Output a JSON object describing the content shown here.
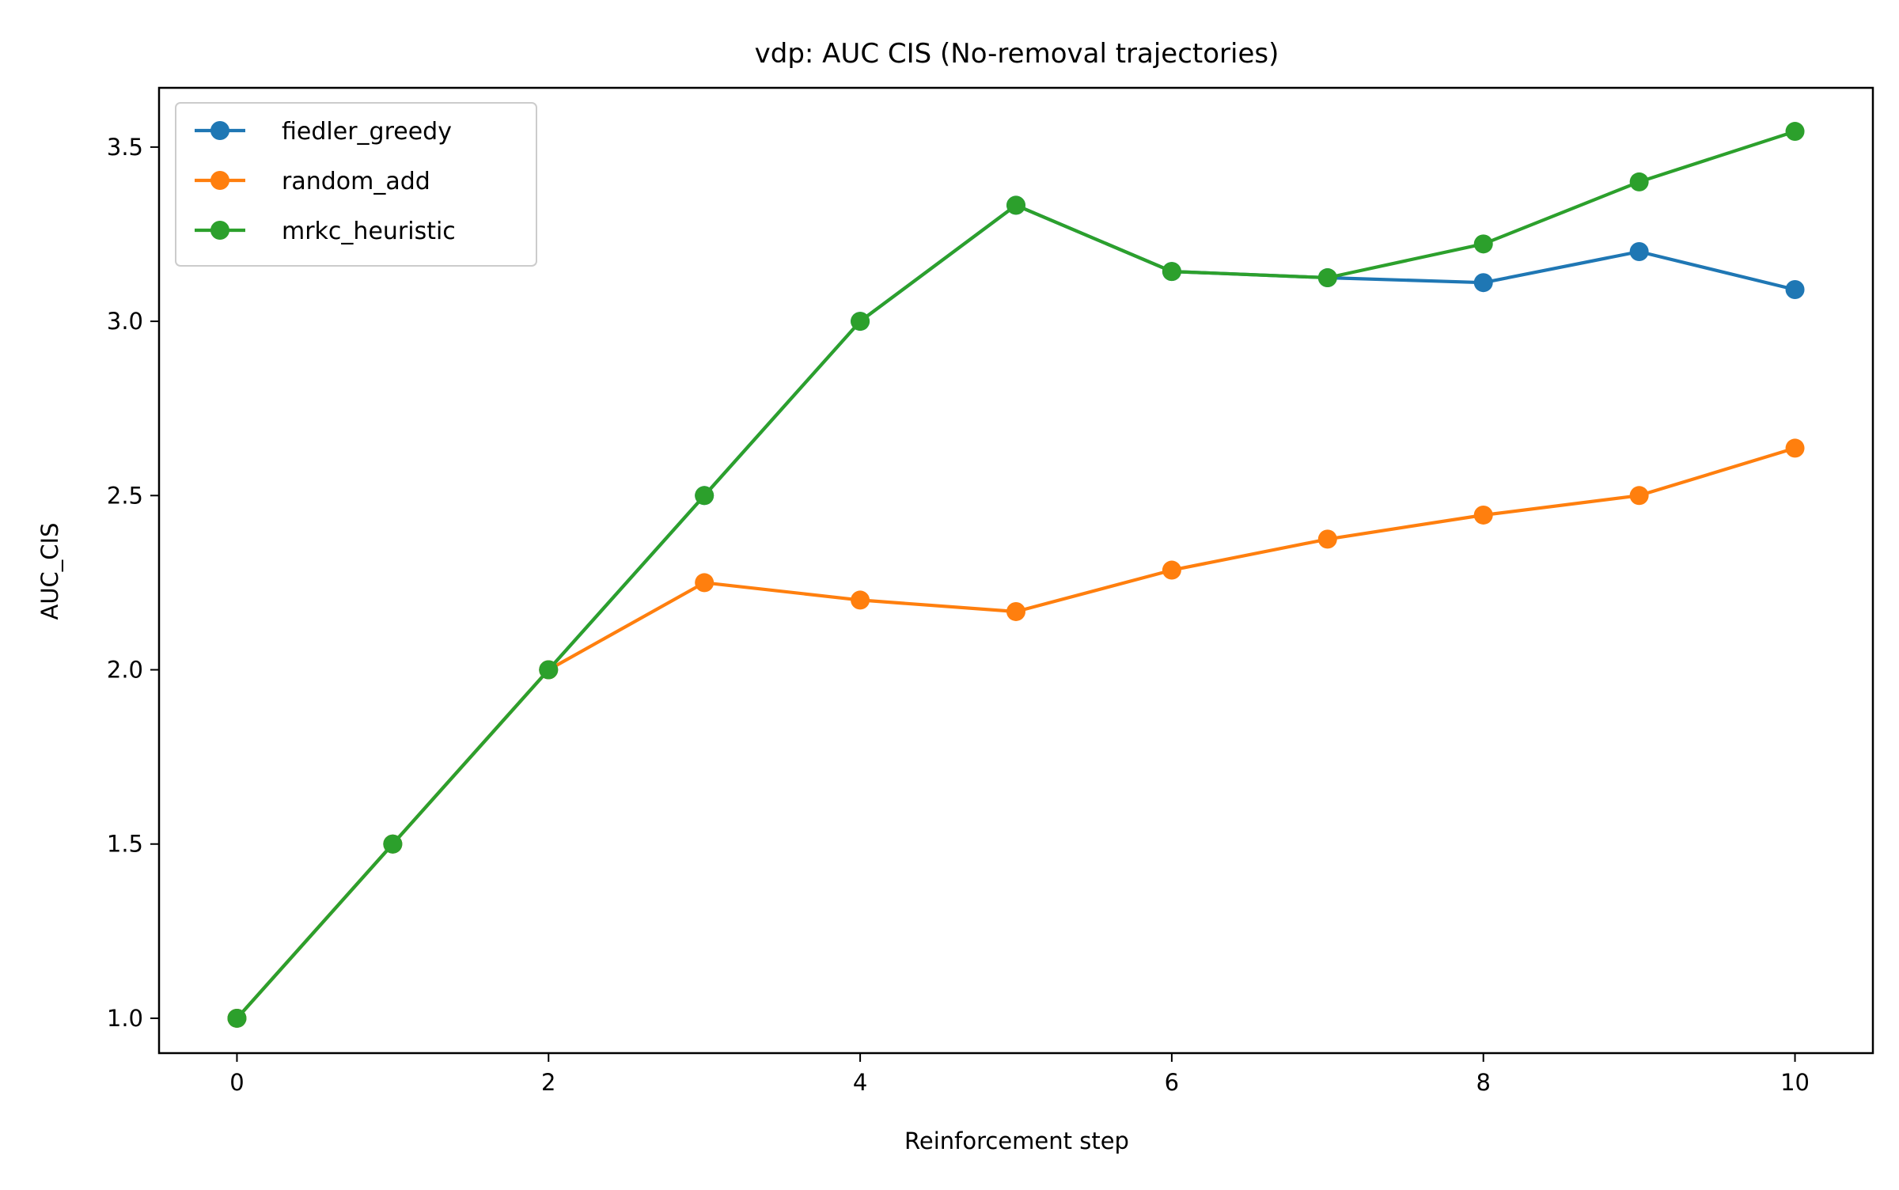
{
  "chart_data": {
    "type": "line",
    "title": "vdp: AUC CIS (No-removal trajectories)",
    "xlabel": "Reinforcement step",
    "ylabel": "AUC_CIS",
    "xlim": [
      -0.5,
      10.5
    ],
    "ylim": [
      0.9,
      3.67
    ],
    "xticks": [
      0,
      2,
      4,
      6,
      8,
      10
    ],
    "xtick_labels": [
      "0",
      "2",
      "4",
      "6",
      "8",
      "10"
    ],
    "yticks": [
      1.0,
      1.5,
      2.0,
      2.5,
      3.0,
      3.5
    ],
    "ytick_labels": [
      "1.0",
      "1.5",
      "2.0",
      "2.5",
      "3.0",
      "3.5"
    ],
    "grid": false,
    "legend_position": "top-left",
    "x": [
      0,
      1,
      2,
      3,
      4,
      5,
      6,
      7,
      8,
      9,
      10
    ],
    "series": [
      {
        "name": "fiedler_greedy",
        "color": "#1f77b4",
        "marker": "circle",
        "values": [
          1.0,
          1.5,
          2.0,
          2.5,
          3.0,
          3.333,
          3.143,
          3.125,
          3.111,
          3.2,
          3.091
        ]
      },
      {
        "name": "random_add",
        "color": "#ff7f0e",
        "marker": "circle",
        "values": [
          1.0,
          1.5,
          2.0,
          2.25,
          2.2,
          2.167,
          2.286,
          2.375,
          2.444,
          2.5,
          2.636
        ]
      },
      {
        "name": "mrkc_heuristic",
        "color": "#2ca02c",
        "marker": "circle",
        "values": [
          1.0,
          1.5,
          2.0,
          2.5,
          3.0,
          3.333,
          3.143,
          3.125,
          3.222,
          3.4,
          3.545
        ]
      }
    ]
  }
}
